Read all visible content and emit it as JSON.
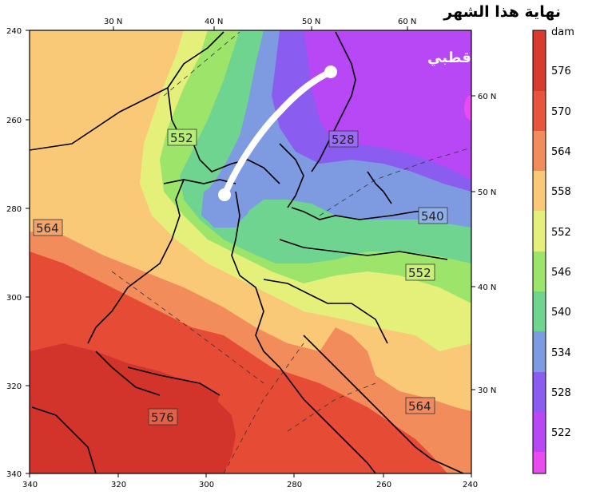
{
  "title": "نهاية هذا الشهر",
  "trough_label": "أخدود قطبي",
  "units": "dam",
  "x_ticks_top": [
    "30 N",
    "40 N",
    "50 N",
    "60 N"
  ],
  "x_ticks_bottom": [
    "340",
    "320",
    "300",
    "280",
    "260",
    "240"
  ],
  "y_ticks_left": [
    "240",
    "260",
    "280",
    "300",
    "320",
    "340"
  ],
  "y_ticks_right": [
    "60 N",
    "50 N",
    "40 N",
    "30 N"
  ],
  "contour_labels": [
    "552",
    "528",
    "564",
    "540",
    "552",
    "576",
    "564"
  ],
  "colorbar": {
    "levels": [
      "576",
      "570",
      "564",
      "558",
      "552",
      "546",
      "540",
      "534",
      "528",
      "522"
    ],
    "colors": [
      "#d93a2e",
      "#e8553c",
      "#f28c5a",
      "#f9c978",
      "#e5f07a",
      "#9ce46a",
      "#6fd490",
      "#7e9ae0",
      "#8a5cf0",
      "#b847f6",
      "#e84cf0"
    ]
  },
  "fill_colors": {
    "very_hot": "#d2332a",
    "hot": "#e64c35",
    "warm": "#f28c5a",
    "mild": "#f9c978",
    "light": "#e5f07a",
    "green": "#9ce46a",
    "teal": "#6fd490",
    "blue": "#7e9ae0",
    "violet": "#8a5cf0",
    "purple": "#b847f6",
    "magenta": "#e84cf0"
  }
}
